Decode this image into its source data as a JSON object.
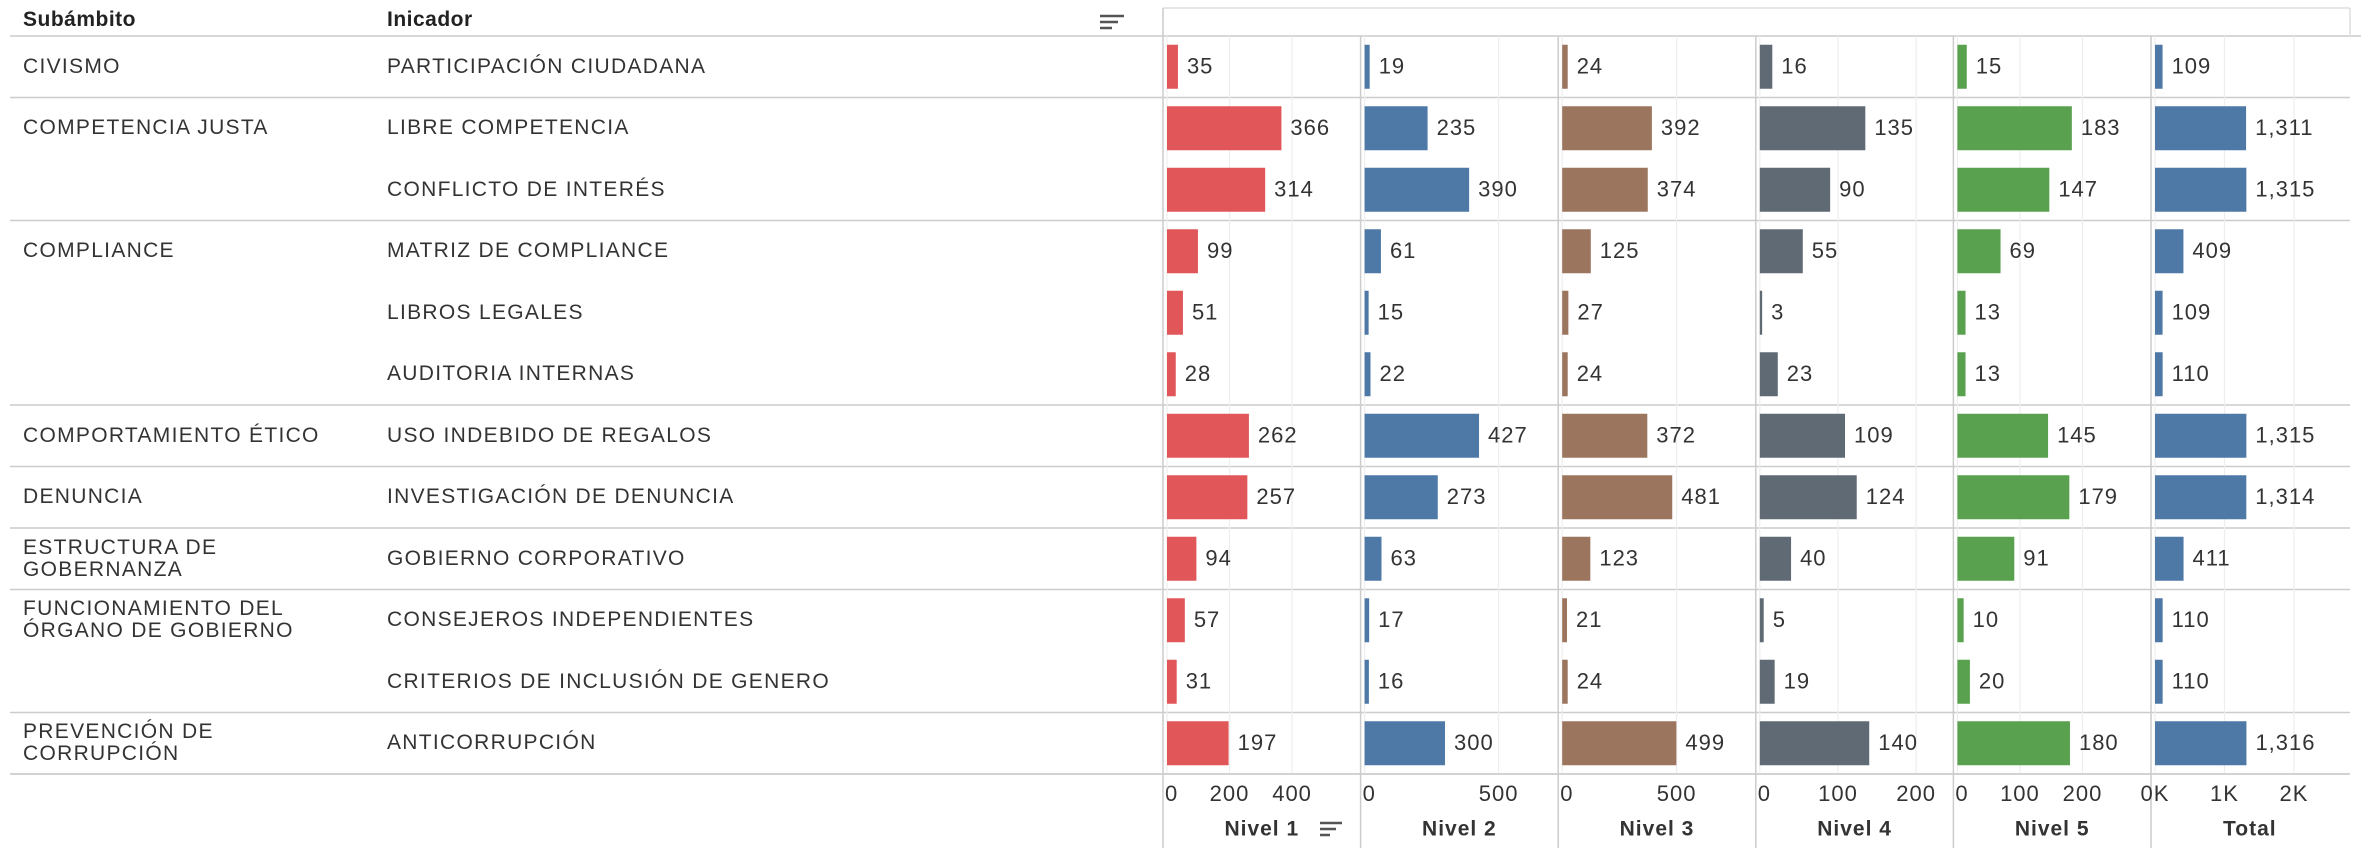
{
  "table": {
    "headers": [
      "Subámbito",
      "Inicador"
    ],
    "groups": [
      {
        "subambito": "CIVISMO",
        "indicadores": [
          "PARTICIPACIÓN CIUDADANA"
        ]
      },
      {
        "subambito": "COMPETENCIA JUSTA",
        "indicadores": [
          "LIBRE COMPETENCIA",
          "CONFLICTO DE INTERÉS"
        ]
      },
      {
        "subambito": "COMPLIANCE",
        "indicadores": [
          "MATRIZ DE COMPLIANCE",
          "LIBROS LEGALES",
          "AUDITORIA INTERNAS"
        ]
      },
      {
        "subambito": "COMPORTAMIENTO ÉTICO",
        "indicadores": [
          "USO INDEBIDO DE REGALOS"
        ]
      },
      {
        "subambito": "DENUNCIA",
        "indicadores": [
          "INVESTIGACIÓN DE DENUNCIA"
        ]
      },
      {
        "subambito": "ESTRUCTURA DE GOBERNANZA",
        "indicadores": [
          "GOBIERNO CORPORATIVO"
        ]
      },
      {
        "subambito": "FUNCIONAMIENTO DEL ÓRGANO DE GOBIERNO",
        "indicadores": [
          "CONSEJEROS INDEPENDIENTES",
          "CRITERIOS DE INCLUSIÓN DE GENERO"
        ]
      },
      {
        "subambito": "PREVENCIÓN DE CORRUPCIÓN",
        "indicadores": [
          "ANTICORRUPCIÓN"
        ]
      }
    ]
  },
  "chart_data": [
    {
      "type": "bar",
      "title": "Nivel 1",
      "color": "#e15759",
      "values": [
        35,
        366,
        314,
        99,
        51,
        28,
        262,
        257,
        94,
        57,
        31,
        197
      ],
      "xlim": [
        0,
        600
      ],
      "xticks": [
        0,
        200,
        400
      ],
      "grid": true
    },
    {
      "type": "bar",
      "title": "Nivel 2",
      "color": "#4e79a7",
      "values": [
        19,
        235,
        390,
        61,
        15,
        22,
        427,
        273,
        63,
        17,
        16,
        300
      ],
      "xlim": [
        0,
        700
      ],
      "xticks": [
        0,
        500
      ],
      "grid": true
    },
    {
      "type": "bar",
      "title": "Nivel 3",
      "color": "#9c755f",
      "values": [
        24,
        392,
        374,
        125,
        27,
        24,
        372,
        481,
        123,
        21,
        24,
        499
      ],
      "xlim": [
        0,
        820
      ],
      "xticks": [
        0,
        500
      ],
      "grid": true
    },
    {
      "type": "bar",
      "title": "Nivel 4",
      "color": "#606a74",
      "values": [
        16,
        135,
        90,
        55,
        3,
        23,
        109,
        124,
        40,
        5,
        19,
        140
      ],
      "xlim": [
        0,
        240
      ],
      "xticks": [
        0,
        100,
        200
      ],
      "grid": true
    },
    {
      "type": "bar",
      "title": "Nivel 5",
      "color": "#59a14f",
      "values": [
        15,
        183,
        147,
        69,
        13,
        13,
        145,
        179,
        91,
        10,
        20,
        180
      ],
      "xlim": [
        0,
        300
      ],
      "xticks": [
        0,
        100,
        200
      ],
      "grid": true
    },
    {
      "type": "bar",
      "title": "Total",
      "color": "#4e79a7",
      "values": [
        109,
        1311,
        1315,
        409,
        109,
        110,
        1315,
        1314,
        411,
        110,
        110,
        1316
      ],
      "value_labels": [
        "109",
        "1,311",
        "1,315",
        "409",
        "109",
        "110",
        "1,315",
        "1,314",
        "411",
        "110",
        "110",
        "1,316"
      ],
      "xlim": [
        0,
        2700
      ],
      "xticks": [
        {
          "value": 0,
          "label": "0K"
        },
        {
          "value": 1000,
          "label": "1K"
        },
        {
          "value": 2000,
          "label": "2K"
        }
      ],
      "grid": true
    }
  ]
}
